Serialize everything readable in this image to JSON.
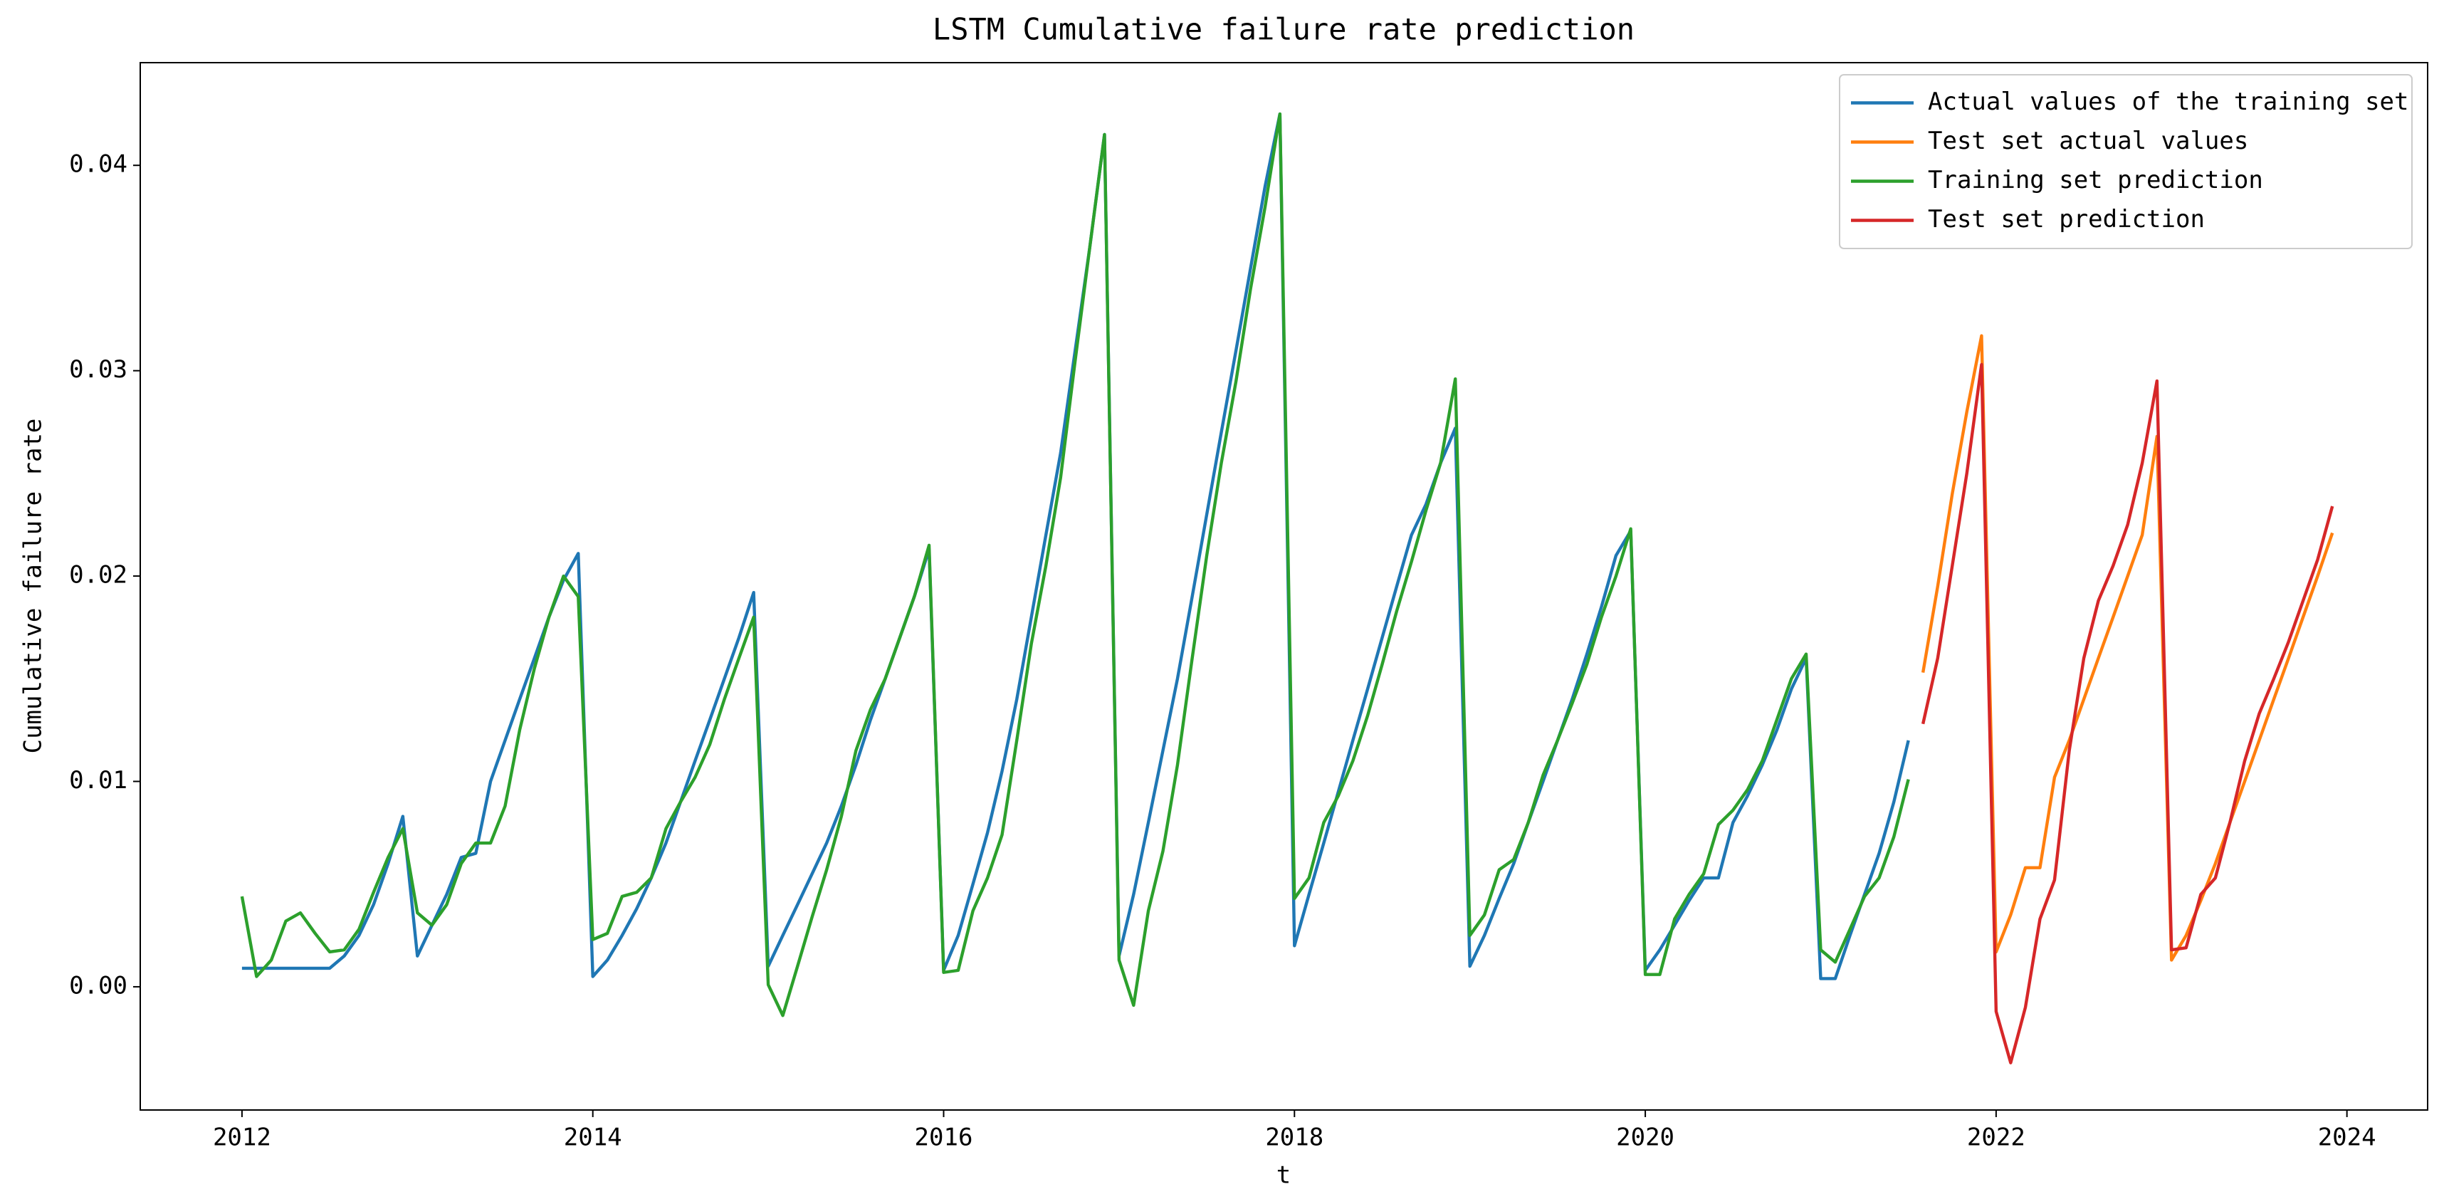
{
  "chart_data": {
    "type": "line",
    "title": "LSTM Cumulative failure rate prediction",
    "x_label": "t",
    "y_label": "Cumulative failure rate",
    "xlim": [
      2011.42,
      2024.46
    ],
    "ylim": [
      -0.006,
      0.045
    ],
    "xticks": [
      2012,
      2014,
      2016,
      2018,
      2020,
      2022,
      2024
    ],
    "yticks": [
      {
        "value": 0,
        "label": "0.00"
      },
      0.01,
      0.02,
      0.03,
      0.04
    ],
    "grid": false,
    "legend": "upper right",
    "series": [
      {
        "name": "Actual values of the training set",
        "color": "#1f77b4",
        "x": [
          2012,
          2012.083,
          2012.167,
          2012.25,
          2012.333,
          2012.417,
          2012.5,
          2012.583,
          2012.667,
          2012.75,
          2012.833,
          2012.917,
          2013,
          2013.083,
          2013.167,
          2013.25,
          2013.333,
          2013.417,
          2013.5,
          2013.583,
          2013.667,
          2013.75,
          2013.833,
          2013.917,
          2014,
          2014.083,
          2014.167,
          2014.25,
          2014.333,
          2014.417,
          2014.5,
          2014.583,
          2014.667,
          2014.75,
          2014.833,
          2014.917,
          2015,
          2015.083,
          2015.167,
          2015.25,
          2015.333,
          2015.417,
          2015.5,
          2015.583,
          2015.667,
          2015.75,
          2015.833,
          2015.917,
          2016,
          2016.083,
          2016.167,
          2016.25,
          2016.333,
          2016.417,
          2016.5,
          2016.583,
          2016.667,
          2016.75,
          2016.833,
          2016.917,
          2017,
          2017.083,
          2017.167,
          2017.25,
          2017.333,
          2017.417,
          2017.5,
          2017.583,
          2017.667,
          2017.75,
          2017.833,
          2017.917,
          2018,
          2018.083,
          2018.167,
          2018.25,
          2018.333,
          2018.417,
          2018.5,
          2018.583,
          2018.667,
          2018.75,
          2018.833,
          2018.917,
          2019,
          2019.083,
          2019.167,
          2019.25,
          2019.333,
          2019.417,
          2019.5,
          2019.583,
          2019.667,
          2019.75,
          2019.833,
          2019.917,
          2020,
          2020.083,
          2020.167,
          2020.25,
          2020.333,
          2020.417,
          2020.5,
          2020.583,
          2020.667,
          2020.75,
          2020.833,
          2020.917,
          2021,
          2021.083,
          2021.167,
          2021.25,
          2021.333,
          2021.417,
          2021.5
        ],
        "values": [
          0.0009,
          0.0009,
          0.0009,
          0.0009,
          0.0009,
          0.0009,
          0.0009,
          0.0015,
          0.0025,
          0.004,
          0.006,
          0.0083,
          0.0015,
          0.003,
          0.0045,
          0.0063,
          0.0065,
          0.01,
          0.012,
          0.014,
          0.016,
          0.018,
          0.0198,
          0.0211,
          0.0005,
          0.0013,
          0.0025,
          0.0038,
          0.0053,
          0.007,
          0.009,
          0.011,
          0.013,
          0.015,
          0.017,
          0.0192,
          0.001,
          0.0025,
          0.004,
          0.0055,
          0.007,
          0.0088,
          0.0108,
          0.013,
          0.015,
          0.017,
          0.019,
          0.0213,
          0.0008,
          0.0025,
          0.005,
          0.0075,
          0.0105,
          0.014,
          0.018,
          0.022,
          0.026,
          0.031,
          0.036,
          0.0415,
          0.0015,
          0.0045,
          0.008,
          0.0115,
          0.015,
          0.019,
          0.023,
          0.027,
          0.031,
          0.035,
          0.039,
          0.0425,
          0.002,
          0.0045,
          0.007,
          0.0095,
          0.012,
          0.0145,
          0.017,
          0.0195,
          0.022,
          0.0235,
          0.0255,
          0.0272,
          0.001,
          0.0025,
          0.0043,
          0.006,
          0.008,
          0.01,
          0.012,
          0.014,
          0.0162,
          0.0185,
          0.021,
          0.0222,
          0.0008,
          0.0018,
          0.003,
          0.0042,
          0.0053,
          0.0053,
          0.008,
          0.0093,
          0.0108,
          0.0125,
          0.0145,
          0.016,
          0.0004,
          0.0004,
          0.0025,
          0.0045,
          0.0065,
          0.009,
          0.012
        ]
      },
      {
        "name": "Test set actual values",
        "color": "#ff7f0e",
        "x": [
          2021.583,
          2021.667,
          2021.75,
          2021.833,
          2021.917,
          2022,
          2022.083,
          2022.167,
          2022.25,
          2022.333,
          2022.417,
          2022.5,
          2022.583,
          2022.667,
          2022.75,
          2022.833,
          2022.917,
          2023,
          2023.083,
          2023.167,
          2023.25,
          2023.333,
          2023.417,
          2023.5,
          2023.583,
          2023.667,
          2023.75,
          2023.833,
          2023.917
        ],
        "values": [
          0.0153,
          0.0195,
          0.024,
          0.028,
          0.0317,
          0.0017,
          0.0035,
          0.0058,
          0.0058,
          0.0102,
          0.012,
          0.014,
          0.016,
          0.018,
          0.02,
          0.022,
          0.0268,
          0.0013,
          0.0025,
          0.0042,
          0.006,
          0.008,
          0.01,
          0.012,
          0.014,
          0.016,
          0.018,
          0.02,
          0.0221
        ]
      },
      {
        "name": "Training set prediction",
        "color": "#2ca02c",
        "x": [
          2012,
          2012.083,
          2012.167,
          2012.25,
          2012.333,
          2012.417,
          2012.5,
          2012.583,
          2012.667,
          2012.75,
          2012.833,
          2012.917,
          2013,
          2013.083,
          2013.167,
          2013.25,
          2013.333,
          2013.417,
          2013.5,
          2013.583,
          2013.667,
          2013.75,
          2013.833,
          2013.917,
          2014,
          2014.083,
          2014.167,
          2014.25,
          2014.333,
          2014.417,
          2014.5,
          2014.583,
          2014.667,
          2014.75,
          2014.833,
          2014.917,
          2015,
          2015.083,
          2015.167,
          2015.25,
          2015.333,
          2015.417,
          2015.5,
          2015.583,
          2015.667,
          2015.75,
          2015.833,
          2015.917,
          2016,
          2016.083,
          2016.167,
          2016.25,
          2016.333,
          2016.417,
          2016.5,
          2016.583,
          2016.667,
          2016.75,
          2016.833,
          2016.917,
          2017,
          2017.083,
          2017.167,
          2017.25,
          2017.333,
          2017.417,
          2017.5,
          2017.583,
          2017.667,
          2017.75,
          2017.833,
          2017.917,
          2018,
          2018.083,
          2018.167,
          2018.25,
          2018.333,
          2018.417,
          2018.5,
          2018.583,
          2018.667,
          2018.75,
          2018.833,
          2018.917,
          2019,
          2019.083,
          2019.167,
          2019.25,
          2019.333,
          2019.417,
          2019.5,
          2019.583,
          2019.667,
          2019.75,
          2019.833,
          2019.917,
          2020,
          2020.083,
          2020.167,
          2020.25,
          2020.333,
          2020.417,
          2020.5,
          2020.583,
          2020.667,
          2020.75,
          2020.833,
          2020.917,
          2021,
          2021.083,
          2021.167,
          2021.25,
          2021.333,
          2021.417,
          2021.5
        ],
        "values": [
          0.0044,
          0.0005,
          0.0013,
          0.0032,
          0.0036,
          0.0026,
          0.0017,
          0.0018,
          0.0028,
          0.0046,
          0.0063,
          0.0077,
          0.0036,
          0.003,
          0.004,
          0.006,
          0.007,
          0.007,
          0.0088,
          0.0125,
          0.0155,
          0.018,
          0.02,
          0.019,
          0.0023,
          0.0026,
          0.0044,
          0.0046,
          0.0053,
          0.0077,
          0.009,
          0.0102,
          0.0118,
          0.014,
          0.016,
          0.018,
          0.0001,
          -0.0014,
          0.001,
          0.0034,
          0.0057,
          0.0083,
          0.0115,
          0.0135,
          0.015,
          0.017,
          0.019,
          0.0215,
          0.0007,
          0.0008,
          0.0037,
          0.0053,
          0.0074,
          0.012,
          0.0167,
          0.0205,
          0.0248,
          0.0305,
          0.036,
          0.0415,
          0.0013,
          -0.0009,
          0.0037,
          0.0066,
          0.0108,
          0.016,
          0.021,
          0.0255,
          0.0295,
          0.034,
          0.038,
          0.0425,
          0.0043,
          0.0053,
          0.008,
          0.0093,
          0.011,
          0.0132,
          0.0157,
          0.0183,
          0.0207,
          0.0232,
          0.0255,
          0.0296,
          0.0025,
          0.0035,
          0.0057,
          0.0062,
          0.008,
          0.0103,
          0.012,
          0.0138,
          0.0157,
          0.018,
          0.02,
          0.0223,
          0.0006,
          0.0006,
          0.0033,
          0.0045,
          0.0055,
          0.0079,
          0.0086,
          0.0096,
          0.011,
          0.013,
          0.015,
          0.0162,
          0.0018,
          0.0012,
          0.0028,
          0.0044,
          0.0053,
          0.0073,
          0.0101
        ]
      },
      {
        "name": "Test set prediction",
        "color": "#d62728",
        "x": [
          2021.583,
          2021.667,
          2021.75,
          2021.833,
          2021.917,
          2022,
          2022.083,
          2022.167,
          2022.25,
          2022.333,
          2022.417,
          2022.5,
          2022.583,
          2022.667,
          2022.75,
          2022.833,
          2022.917,
          2023,
          2023.083,
          2023.167,
          2023.25,
          2023.333,
          2023.417,
          2023.5,
          2023.583,
          2023.667,
          2023.75,
          2023.833,
          2023.917
        ],
        "values": [
          0.0128,
          0.016,
          0.0205,
          0.025,
          0.0303,
          -0.0012,
          -0.0037,
          -0.001,
          0.0033,
          0.0052,
          0.0115,
          0.016,
          0.0188,
          0.0205,
          0.0225,
          0.0255,
          0.0295,
          0.0018,
          0.0019,
          0.0045,
          0.0053,
          0.008,
          0.011,
          0.0133,
          0.015,
          0.0168,
          0.0188,
          0.0208,
          0.0234
        ]
      }
    ]
  }
}
